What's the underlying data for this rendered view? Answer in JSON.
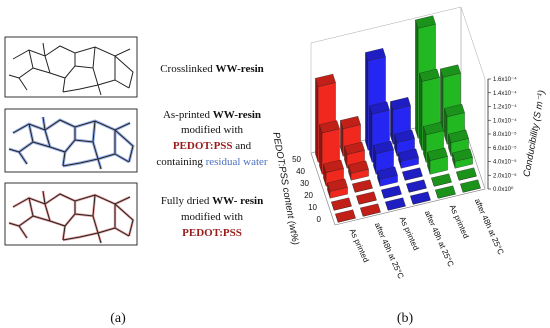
{
  "panel_a": {
    "label": "(a)",
    "items": [
      {
        "lines": [
          [
            "Crosslinked ",
            "WW-resin"
          ]
        ]
      },
      {
        "lines": [
          [
            "As-printed ",
            "WW-resin"
          ],
          [
            "modified with"
          ],
          [
            "PEDOT:PSS",
            " and"
          ],
          [
            "containing ",
            "residual water"
          ]
        ]
      },
      {
        "lines": [
          [
            "Fully dried ",
            "WW- resin"
          ],
          [
            "modified with"
          ],
          [
            "PEDOT:PSS"
          ]
        ]
      }
    ]
  },
  "chart_data": {
    "type": "bar3d",
    "panel_label": "(b)",
    "categories": [
      "As printed",
      "after 48h at 25°C",
      "As printed",
      "after 48h at 25°C",
      "As printed",
      "after 48h at 25°C"
    ],
    "depth_label": "PEDOT:PSS content (wt%)",
    "depth_categories": [
      0,
      10,
      20,
      30,
      40,
      50
    ],
    "zlabel": "Conducibility (S m⁻¹)",
    "zlim": [
      0,
      0.00016
    ],
    "zticks": [
      {
        "value": 0,
        "label": "0.0x10⁰"
      },
      {
        "value": 2e-05,
        "label": "2.0x10⁻⁵"
      },
      {
        "value": 4e-05,
        "label": "4.0x10⁻⁵"
      },
      {
        "value": 6e-05,
        "label": "6.0x10⁻⁵"
      },
      {
        "value": 8e-05,
        "label": "8.0x10⁻⁵"
      },
      {
        "value": 0.0001,
        "label": "1.0x10⁻⁴"
      },
      {
        "value": 0.00012,
        "label": "1.2x10⁻⁴"
      },
      {
        "value": 0.00014,
        "label": "1.4x10⁻⁴"
      },
      {
        "value": 0.00016,
        "label": "1.6x10⁻⁴"
      }
    ],
    "series": [
      {
        "color": "#f0281e",
        "values": [
          0,
          0,
          1e-05,
          2e-05,
          6e-05,
          0.00011
        ]
      },
      {
        "color": "#f0281e",
        "values": [
          0,
          0,
          0,
          1e-05,
          2e-05,
          4e-05
        ]
      },
      {
        "color": "#2626f2",
        "values": [
          0,
          0,
          1e-05,
          3e-05,
          7e-05,
          0.00013
        ]
      },
      {
        "color": "#2626f2",
        "values": [
          0,
          0,
          0,
          1e-05,
          2e-05,
          5e-05
        ]
      },
      {
        "color": "#22b822",
        "values": [
          0,
          0,
          2e-05,
          4e-05,
          0.0001,
          0.00016
        ]
      },
      {
        "color": "#22b822",
        "values": [
          0,
          0,
          1e-05,
          2e-05,
          4e-05,
          8e-05
        ]
      }
    ]
  }
}
